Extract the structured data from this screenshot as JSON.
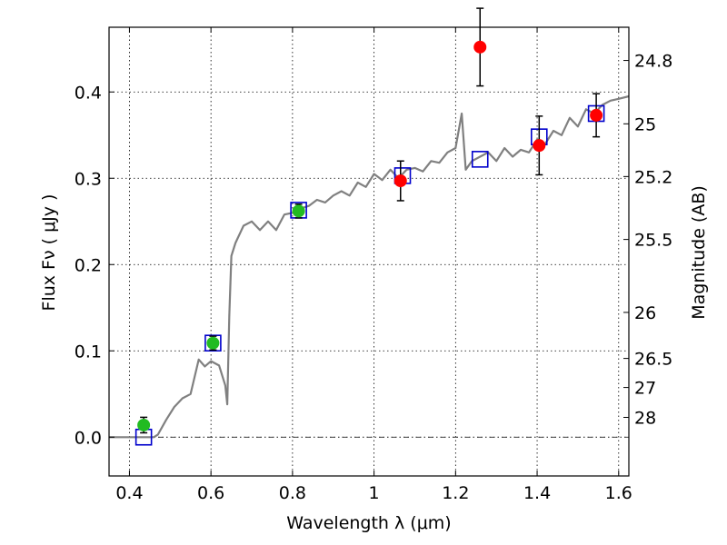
{
  "chart_data": {
    "type": "scatter",
    "xlabel": "Wavelength  λ (μm)",
    "ylabel": "Flux  Fν  ( μJy )",
    "y2label": "Magnitude (AB)",
    "xlim": [
      0.35,
      1.625
    ],
    "ylim": [
      -0.045,
      0.475
    ],
    "grid": true,
    "x_ticks": [
      0.4,
      0.6,
      0.8,
      1.0,
      1.2,
      1.4,
      1.6
    ],
    "x_tick_labels": [
      "0.4",
      "0.6",
      "0.8",
      "1",
      "1.2",
      "1.4",
      "1.6"
    ],
    "y_ticks": [
      0.0,
      0.1,
      0.2,
      0.3,
      0.4
    ],
    "y_tick_labels": [
      "0.0",
      "0.1",
      "0.2",
      "0.3",
      "0.4"
    ],
    "mag_ticks": [
      24.8,
      25,
      25.2,
      25.5,
      26,
      26.5,
      27,
      28
    ],
    "mag_tick_labels": [
      "24.8",
      "25",
      "25.2",
      "25.5",
      "26",
      "26.5",
      "27",
      "28"
    ],
    "zero_line_y": 0.0,
    "colors": {
      "model": "#808080",
      "optical": "#22bb22",
      "nir": "#ff0000",
      "box": "#0000cc",
      "errorbar": "#000000",
      "grid": "#000000"
    },
    "series": [
      {
        "kind": "line",
        "color": "#808080",
        "x": [
          0.35,
          0.46,
          0.47,
          0.49,
          0.51,
          0.53,
          0.55,
          0.57,
          0.585,
          0.6,
          0.62,
          0.635,
          0.64,
          0.645,
          0.65,
          0.66,
          0.68,
          0.7,
          0.72,
          0.74,
          0.76,
          0.78,
          0.8,
          0.82,
          0.84,
          0.86,
          0.88,
          0.9,
          0.92,
          0.94,
          0.96,
          0.98,
          1.0,
          1.02,
          1.04,
          1.06,
          1.08,
          1.1,
          1.12,
          1.14,
          1.16,
          1.18,
          1.2,
          1.215,
          1.225,
          1.24,
          1.26,
          1.28,
          1.3,
          1.32,
          1.34,
          1.36,
          1.38,
          1.4,
          1.42,
          1.44,
          1.46,
          1.48,
          1.5,
          1.52,
          1.54,
          1.56,
          1.58,
          1.6,
          1.625
        ],
        "y": [
          0.0,
          0.0,
          0.003,
          0.02,
          0.035,
          0.045,
          0.05,
          0.09,
          0.082,
          0.088,
          0.083,
          0.06,
          0.038,
          0.14,
          0.21,
          0.225,
          0.245,
          0.25,
          0.24,
          0.25,
          0.24,
          0.258,
          0.26,
          0.265,
          0.268,
          0.275,
          0.272,
          0.28,
          0.285,
          0.28,
          0.295,
          0.29,
          0.305,
          0.298,
          0.31,
          0.3,
          0.31,
          0.312,
          0.308,
          0.32,
          0.318,
          0.33,
          0.335,
          0.375,
          0.31,
          0.32,
          0.325,
          0.33,
          0.32,
          0.335,
          0.325,
          0.333,
          0.33,
          0.345,
          0.34,
          0.355,
          0.35,
          0.37,
          0.36,
          0.38,
          0.375,
          0.385,
          0.39,
          0.392,
          0.395
        ]
      },
      {
        "kind": "boxes",
        "color": "#0000cc",
        "x": [
          0.435,
          0.605,
          0.815,
          1.07,
          1.26,
          1.405,
          1.545
        ],
        "y": [
          0.0,
          0.109,
          0.263,
          0.303,
          0.322,
          0.348,
          0.375
        ]
      },
      {
        "kind": "points",
        "color": "#22bb22",
        "x": [
          0.435,
          0.605,
          0.815
        ],
        "y": [
          0.014,
          0.109,
          0.262
        ],
        "yerr": [
          0.009,
          0.008,
          0.008
        ]
      },
      {
        "kind": "points",
        "color": "#ff0000",
        "x": [
          1.065,
          1.26,
          1.405,
          1.545
        ],
        "y": [
          0.297,
          0.452,
          0.338,
          0.373
        ],
        "yerr": [
          0.023,
          0.045,
          0.034,
          0.025
        ]
      }
    ]
  }
}
